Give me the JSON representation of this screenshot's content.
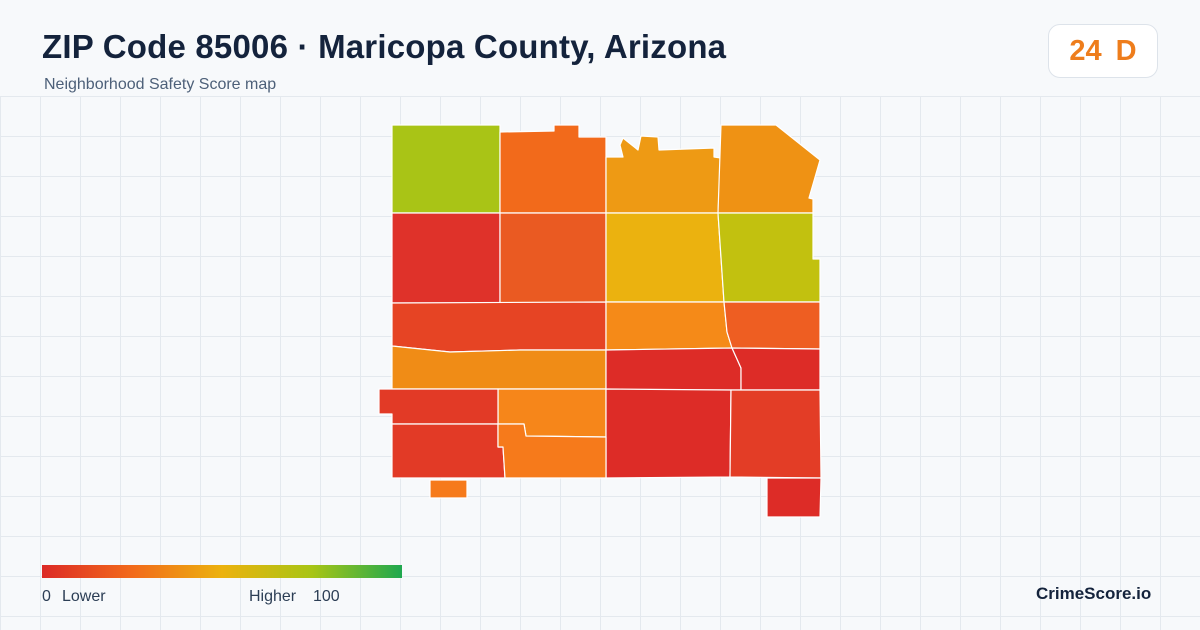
{
  "header": {
    "title": "ZIP Code 85006 · Maricopa County, Arizona",
    "subtitle": "Neighborhood Safety Score map"
  },
  "score": {
    "value": "24",
    "grade": "D",
    "color": "#ee7d1c"
  },
  "legend": {
    "min_label": "0",
    "min_text": "Lower",
    "max_text": "Higher",
    "max_label": "100",
    "scale_colors": [
      "#dc2a26",
      "#f26a1b",
      "#ecb20e",
      "#a8c515",
      "#1fa84f"
    ]
  },
  "brand": "CrimeScore.io",
  "map": {
    "regions": [
      {
        "id": "r01",
        "color": "#a9c416"
      },
      {
        "id": "r02",
        "color": "#f26a1b"
      },
      {
        "id": "r03",
        "color": "#ee9a14"
      },
      {
        "id": "r04",
        "color": "#ef9214"
      },
      {
        "id": "r05",
        "color": "#df322a"
      },
      {
        "id": "r06",
        "color": "#ea5a22"
      },
      {
        "id": "r07",
        "color": "#ebb20f"
      },
      {
        "id": "r08",
        "color": "#c2c10f"
      },
      {
        "id": "r09",
        "color": "#e64424"
      },
      {
        "id": "r10",
        "color": "#f58a18"
      },
      {
        "id": "r11",
        "color": "#ee5e22"
      },
      {
        "id": "r12",
        "color": "#f08c16"
      },
      {
        "id": "r13",
        "color": "#dd2c27"
      },
      {
        "id": "r14",
        "color": "#dd2c27"
      },
      {
        "id": "r15",
        "color": "#f6861a"
      },
      {
        "id": "r16",
        "color": "#dd2c27"
      },
      {
        "id": "r17",
        "color": "#e33d26"
      },
      {
        "id": "r18",
        "color": "#e23a26"
      },
      {
        "id": "r19",
        "color": "#f67a1b"
      },
      {
        "id": "r20",
        "color": "#f67a1b"
      },
      {
        "id": "r21",
        "color": "#dd2c27"
      }
    ]
  }
}
